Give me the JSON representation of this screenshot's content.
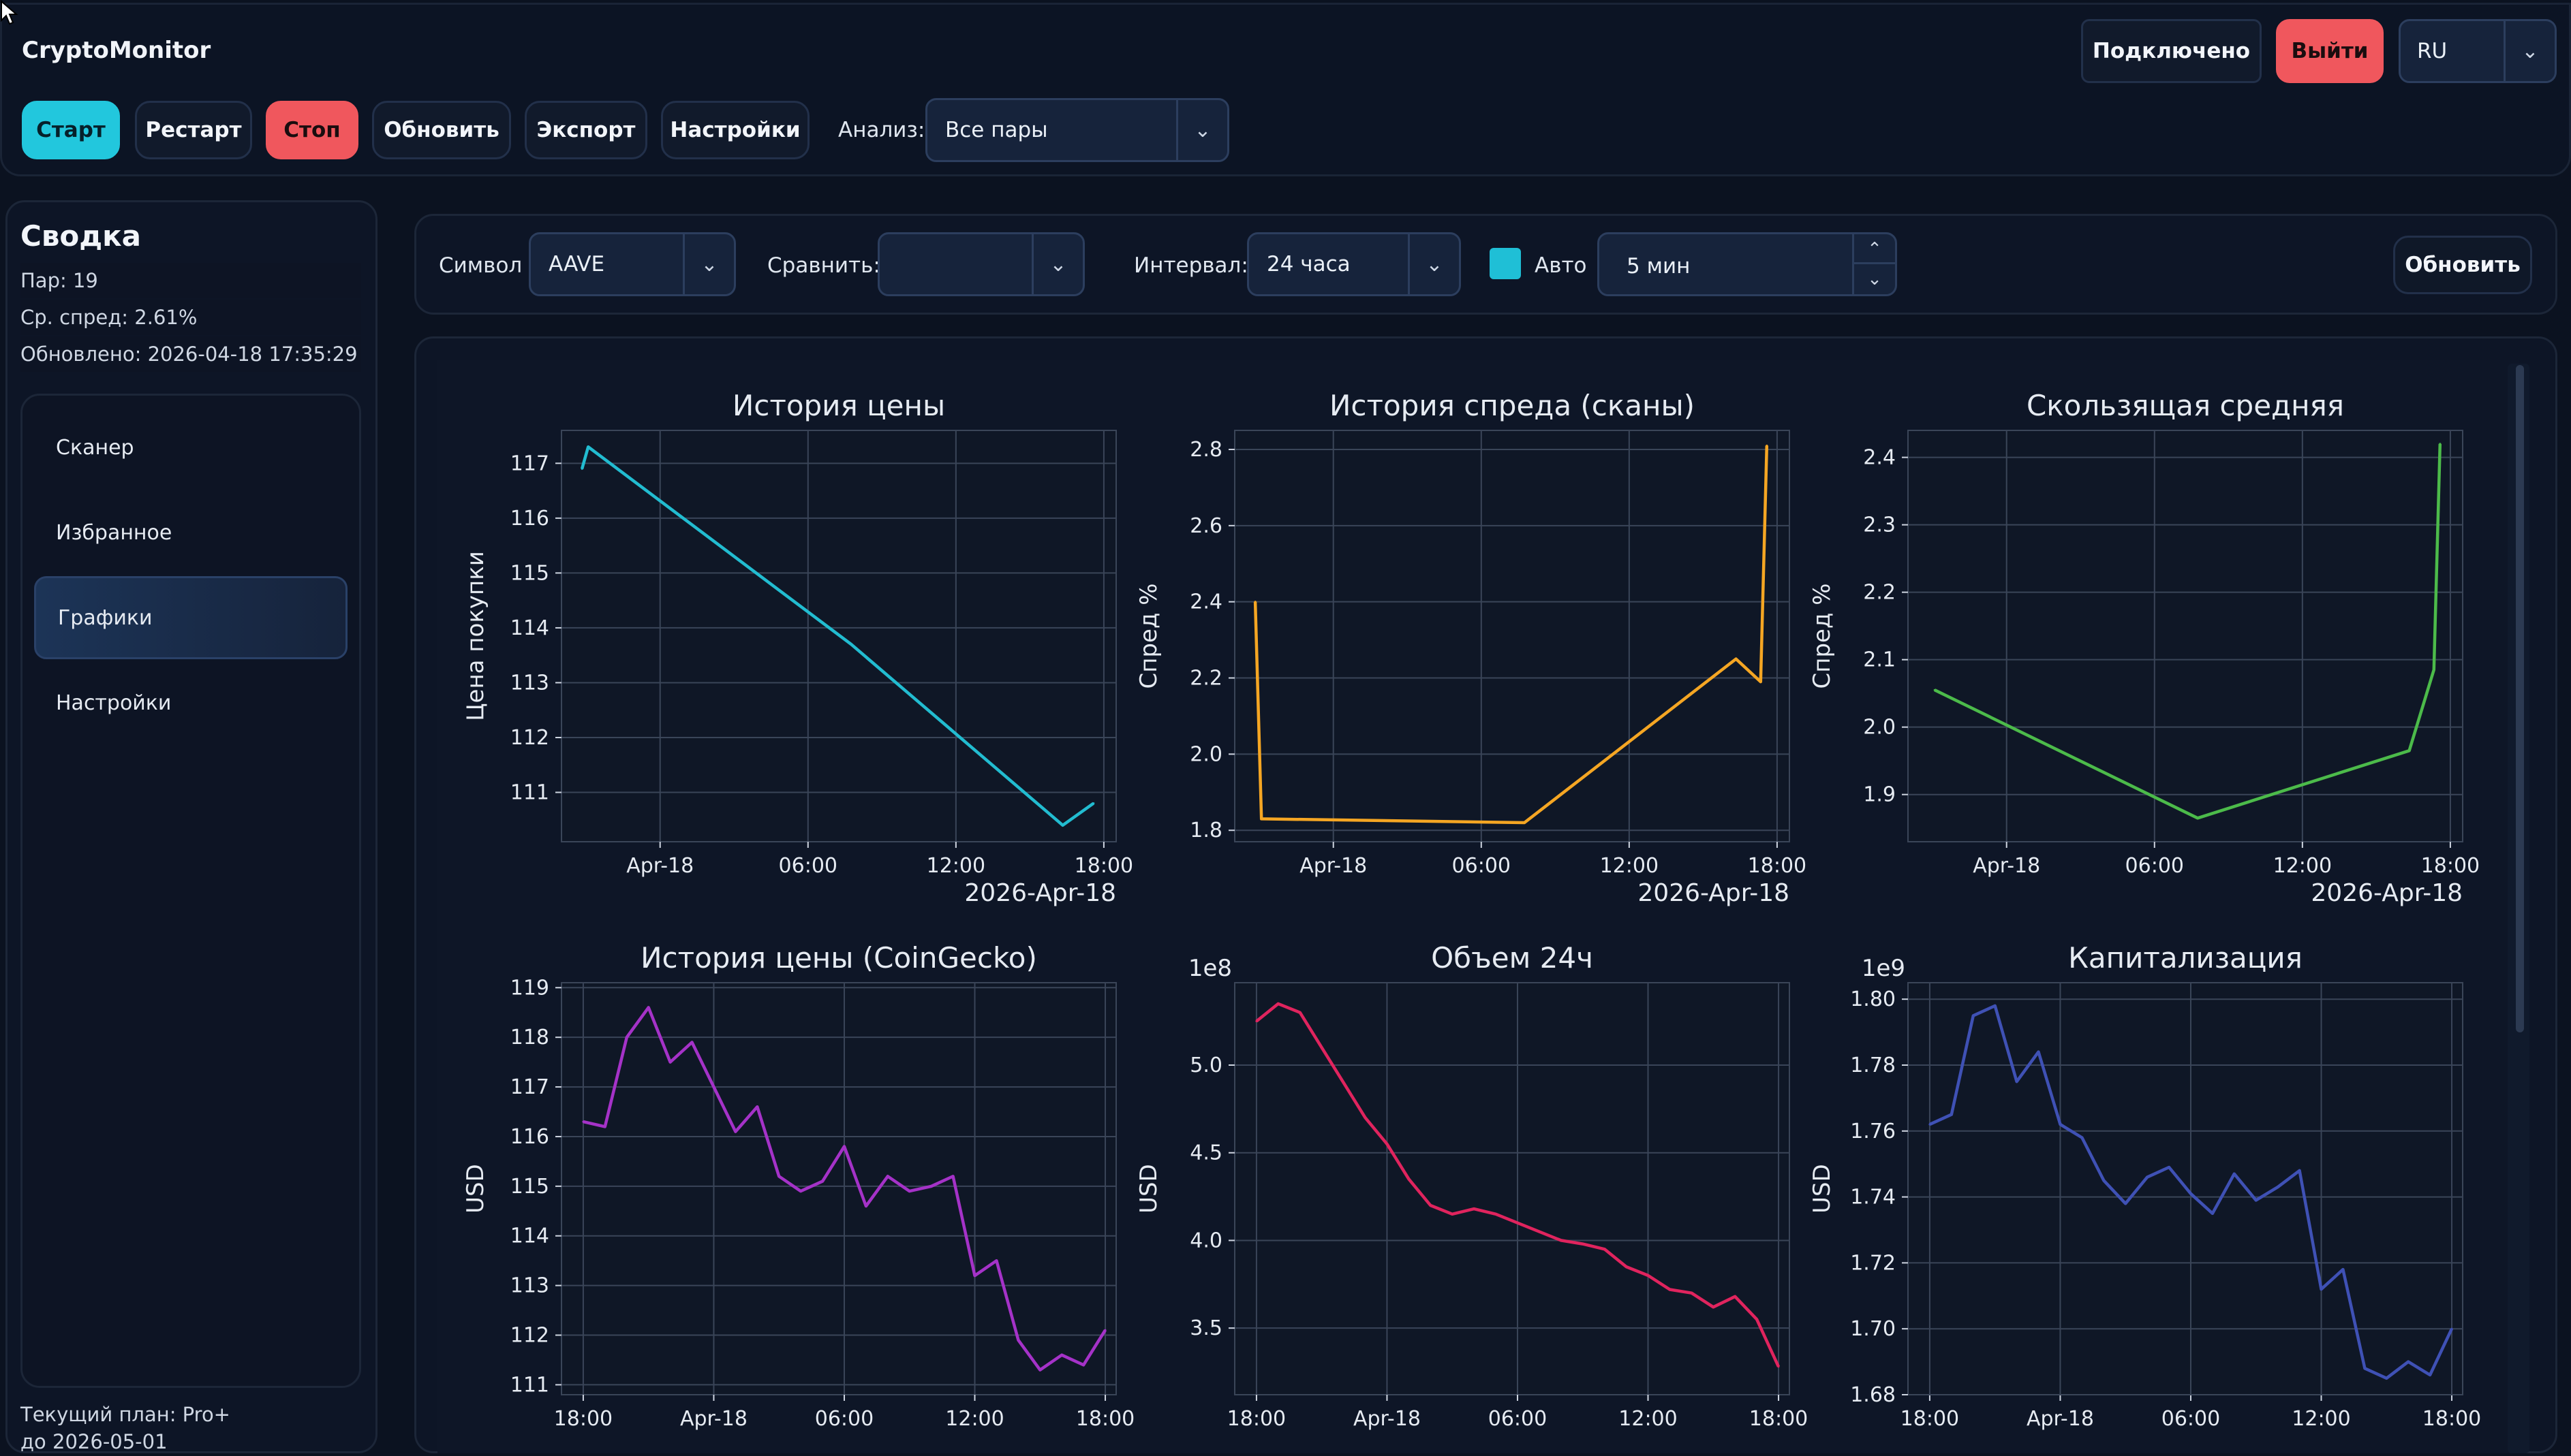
{
  "app": {
    "title": "CryptoMonitor"
  },
  "toolbar": {
    "start": "Старт",
    "restart": "Рестарт",
    "stop": "Стоп",
    "refresh": "Обновить",
    "export": "Экспорт",
    "settings": "Настройки",
    "analysis_label": "Анализ:",
    "analysis_value": "Все пары"
  },
  "header": {
    "status": "Подключено",
    "logout": "Выйти",
    "language": "RU"
  },
  "sidebar": {
    "title": "Сводка",
    "pairs": "Пар: 19",
    "avg_spread": "Ср. спред: 2.61%",
    "updated": "Обновлено: 2026-04-18 17:35:29",
    "items": [
      {
        "label": "Сканер",
        "active": false
      },
      {
        "label": "Избранное",
        "active": false
      },
      {
        "label": "Графики",
        "active": true
      },
      {
        "label": "Настройки",
        "active": false
      }
    ],
    "plan": "Текущий план: Pro+",
    "plan_until": "до 2026-05-01"
  },
  "filters": {
    "symbol_label": "Символ",
    "symbol_value": "AAVE",
    "compare_label": "Сравнить:",
    "compare_value": "",
    "interval_label": "Интервал:",
    "interval_value": "24 часа",
    "auto_label": "Авто",
    "auto_checked": true,
    "auto_interval": "5 мин",
    "refresh": "Обновить"
  },
  "colors": {
    "accent": "#22c7dd",
    "danger": "#f0575d"
  },
  "chart_data": [
    {
      "type": "line",
      "title": "История цены",
      "ylabel": "Цена покупки",
      "xticks": [
        "Apr-18",
        "06:00",
        "12:00",
        "18:00"
      ],
      "xsub": "2026-Apr-18",
      "yticks": [
        "111",
        "112",
        "113",
        "114",
        "115",
        "116",
        "117"
      ],
      "ylim": [
        110.1,
        117.6
      ],
      "color": "#22bcd0",
      "x": [
        "2026-04-17 20:50",
        "2026-04-17 21:05",
        "2026-04-18 07:45",
        "2026-04-18 16:20",
        "2026-04-18 17:35"
      ],
      "y": [
        116.9,
        117.3,
        113.7,
        110.4,
        110.8
      ]
    },
    {
      "type": "line",
      "title": "История спреда (сканы)",
      "ylabel": "Спред %",
      "xticks": [
        "Apr-18",
        "06:00",
        "12:00",
        "18:00"
      ],
      "xsub": "2026-Apr-18",
      "yticks": [
        "1.8",
        "2.0",
        "2.2",
        "2.4",
        "2.6",
        "2.8"
      ],
      "ylim": [
        1.77,
        2.85
      ],
      "color": "#f5a623",
      "x": [
        "2026-04-17 20:50",
        "2026-04-17 21:05",
        "2026-04-18 07:45",
        "2026-04-18 16:20",
        "2026-04-18 17:20",
        "2026-04-18 17:35"
      ],
      "y": [
        2.4,
        1.83,
        1.82,
        2.25,
        2.19,
        2.81
      ]
    },
    {
      "type": "line",
      "title": "Скользящая средняя",
      "ylabel": "Спред %",
      "xticks": [
        "Apr-18",
        "06:00",
        "12:00",
        "18:00"
      ],
      "xsub": "2026-Apr-18",
      "yticks": [
        "1.9",
        "2.0",
        "2.1",
        "2.2",
        "2.3",
        "2.4"
      ],
      "ylim": [
        1.83,
        2.44
      ],
      "color": "#4cbb4a",
      "x": [
        "2026-04-17 21:05",
        "2026-04-18 07:45",
        "2026-04-18 16:20",
        "2026-04-18 17:20",
        "2026-04-18 17:35"
      ],
      "y": [
        2.055,
        1.865,
        1.965,
        2.085,
        2.42
      ]
    },
    {
      "type": "line",
      "title": "История цены (CoinGecko)",
      "ylabel": "USD",
      "xticks": [
        "18:00",
        "Apr-18",
        "06:00",
        "12:00",
        "18:00"
      ],
      "yticks": [
        "111",
        "112",
        "113",
        "114",
        "115",
        "116",
        "117",
        "118",
        "119"
      ],
      "ylim": [
        110.8,
        119.1
      ],
      "color": "#a532c8",
      "x": [
        "2026-04-17 18:00",
        "2026-04-17 19:00",
        "2026-04-17 20:00",
        "2026-04-17 21:00",
        "2026-04-17 22:00",
        "2026-04-17 23:00",
        "2026-04-18 00:00",
        "2026-04-18 01:00",
        "2026-04-18 02:00",
        "2026-04-18 03:00",
        "2026-04-18 04:00",
        "2026-04-18 05:00",
        "2026-04-18 06:00",
        "2026-04-18 07:00",
        "2026-04-18 08:00",
        "2026-04-18 09:00",
        "2026-04-18 10:00",
        "2026-04-18 11:00",
        "2026-04-18 12:00",
        "2026-04-18 13:00",
        "2026-04-18 14:00",
        "2026-04-18 15:00",
        "2026-04-18 16:00",
        "2026-04-18 17:00",
        "2026-04-18 18:00"
      ],
      "y": [
        116.3,
        116.2,
        118.0,
        118.6,
        117.5,
        117.9,
        117.0,
        116.1,
        116.6,
        115.2,
        114.9,
        115.1,
        115.8,
        114.6,
        115.2,
        114.9,
        115.0,
        115.2,
        113.2,
        113.5,
        111.9,
        111.3,
        111.6,
        111.4,
        112.1
      ]
    },
    {
      "type": "line",
      "title": "Объем 24ч",
      "ylabel": "USD",
      "multiplier": "1e8",
      "xticks": [
        "18:00",
        "Apr-18",
        "06:00",
        "12:00",
        "18:00"
      ],
      "yticks": [
        "3.5",
        "4.0",
        "4.5",
        "5.0"
      ],
      "ylim": [
        3.12,
        5.47
      ],
      "color": "#e0245e",
      "x": [
        "2026-04-17 18:00",
        "2026-04-17 19:00",
        "2026-04-17 20:00",
        "2026-04-17 21:00",
        "2026-04-17 22:00",
        "2026-04-17 23:00",
        "2026-04-18 00:00",
        "2026-04-18 01:00",
        "2026-04-18 02:00",
        "2026-04-18 03:00",
        "2026-04-18 04:00",
        "2026-04-18 05:00",
        "2026-04-18 06:00",
        "2026-04-18 07:00",
        "2026-04-18 08:00",
        "2026-04-18 09:00",
        "2026-04-18 10:00",
        "2026-04-18 11:00",
        "2026-04-18 12:00",
        "2026-04-18 13:00",
        "2026-04-18 14:00",
        "2026-04-18 15:00",
        "2026-04-18 16:00",
        "2026-04-18 17:00",
        "2026-04-18 18:00"
      ],
      "y": [
        5.25,
        5.35,
        5.3,
        5.1,
        4.9,
        4.7,
        4.55,
        4.35,
        4.2,
        4.15,
        4.18,
        4.15,
        4.1,
        4.05,
        4.0,
        3.98,
        3.95,
        3.85,
        3.8,
        3.72,
        3.7,
        3.62,
        3.68,
        3.55,
        3.28
      ]
    },
    {
      "type": "line",
      "title": "Капитализация",
      "ylabel": "USD",
      "multiplier": "1e9",
      "xticks": [
        "18:00",
        "Apr-18",
        "06:00",
        "12:00",
        "18:00"
      ],
      "yticks": [
        "1.68",
        "1.70",
        "1.72",
        "1.74",
        "1.76",
        "1.78",
        "1.80"
      ],
      "ylim": [
        1.68,
        1.805
      ],
      "color": "#3f51b5",
      "x": [
        "2026-04-17 18:00",
        "2026-04-17 19:00",
        "2026-04-17 20:00",
        "2026-04-17 21:00",
        "2026-04-17 22:00",
        "2026-04-17 23:00",
        "2026-04-18 00:00",
        "2026-04-18 01:00",
        "2026-04-18 02:00",
        "2026-04-18 03:00",
        "2026-04-18 04:00",
        "2026-04-18 05:00",
        "2026-04-18 06:00",
        "2026-04-18 07:00",
        "2026-04-18 08:00",
        "2026-04-18 09:00",
        "2026-04-18 10:00",
        "2026-04-18 11:00",
        "2026-04-18 12:00",
        "2026-04-18 13:00",
        "2026-04-18 14:00",
        "2026-04-18 15:00",
        "2026-04-18 16:00",
        "2026-04-18 17:00",
        "2026-04-18 18:00"
      ],
      "y": [
        1.762,
        1.765,
        1.795,
        1.798,
        1.775,
        1.784,
        1.762,
        1.758,
        1.745,
        1.738,
        1.746,
        1.749,
        1.741,
        1.735,
        1.747,
        1.739,
        1.743,
        1.748,
        1.712,
        1.718,
        1.688,
        1.685,
        1.69,
        1.686,
        1.7
      ]
    }
  ]
}
